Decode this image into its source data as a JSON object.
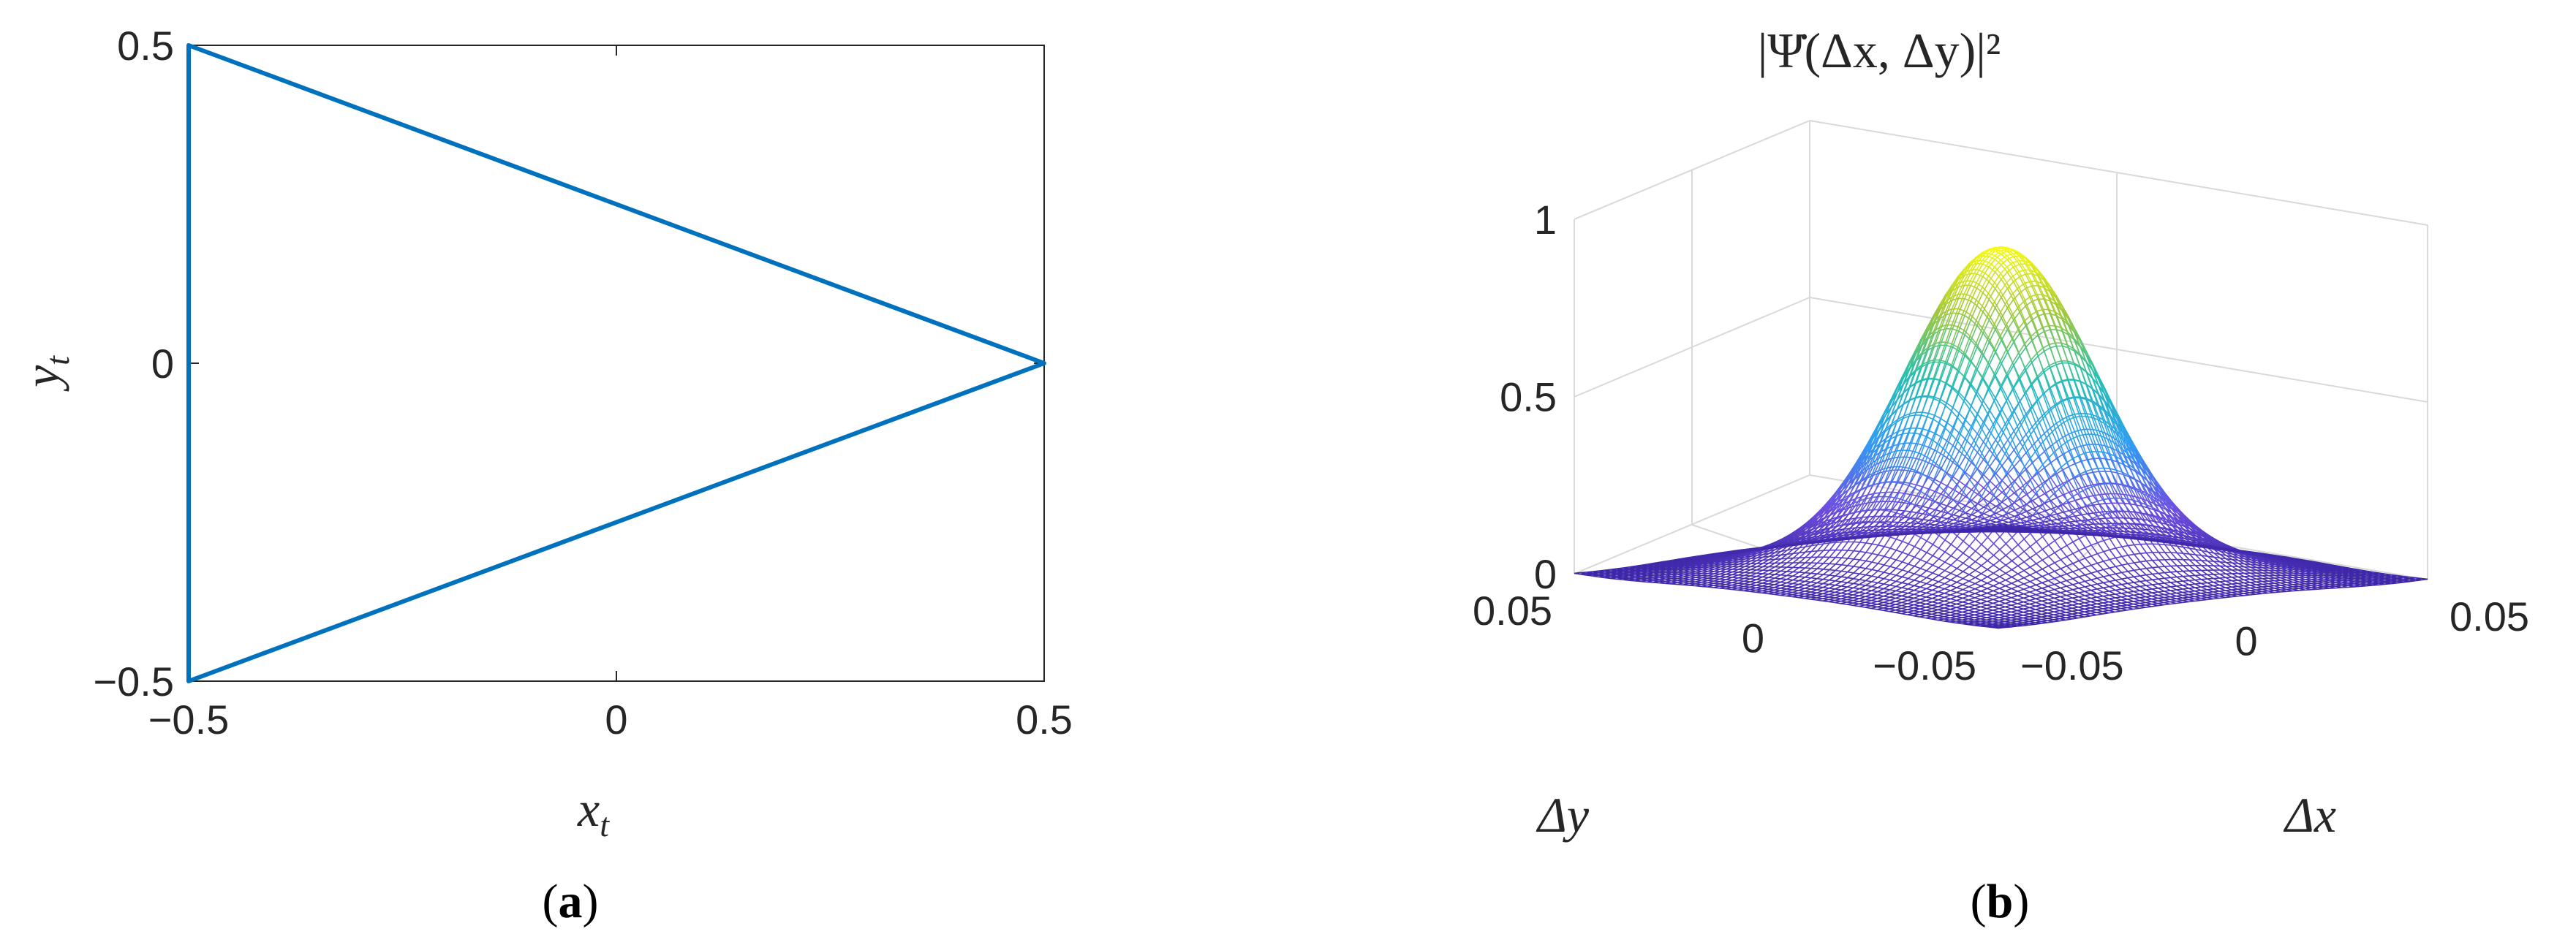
{
  "chart_data": [
    {
      "type": "line",
      "panel_label": "a",
      "xlabel": {
        "main": "x",
        "sub": "t"
      },
      "ylabel": {
        "main": "y",
        "sub": "t"
      },
      "xlim": [
        -0.5,
        0.5
      ],
      "ylim": [
        -0.5,
        0.5
      ],
      "xticks": [
        -0.5,
        0,
        0.5
      ],
      "xtick_labels": [
        "−0.5",
        "0",
        "0.5"
      ],
      "yticks": [
        -0.5,
        0,
        0.5
      ],
      "ytick_labels": [
        "−0.5",
        "0",
        "0.5"
      ],
      "grid": false,
      "series": [
        {
          "color": "#0072BD",
          "x": [
            -0.5,
            0.5,
            -0.5,
            -0.5
          ],
          "y": [
            0.5,
            0.0,
            -0.5,
            0.5
          ]
        }
      ]
    },
    {
      "type": "surface",
      "panel_label": "b",
      "title": "|Ψ̇(Δx, Δy)|²",
      "xlabel": "Δx",
      "ylabel": "Δy",
      "xlim": [
        -0.05,
        0.05
      ],
      "ylim": [
        -0.05,
        0.05
      ],
      "zlim": [
        0,
        1
      ],
      "xticks": [
        -0.05,
        0,
        0.05
      ],
      "xtick_labels": [
        "−0.05",
        "0",
        "0.05"
      ],
      "yticks": [
        -0.05,
        0,
        0.05
      ],
      "ytick_labels": [
        "−0.05",
        "0",
        "0.05"
      ],
      "zticks": [
        0,
        0.5,
        1
      ],
      "ztick_labels": [
        "0",
        "0.5",
        "1"
      ],
      "grid": true,
      "peak": {
        "x": 0,
        "y": 0,
        "z": 0.93
      },
      "colormap": [
        "#3E26A8",
        "#6F4FE0",
        "#2F9DF4",
        "#25C0B3",
        "#A2C83A",
        "#F9FB0E"
      ]
    }
  ]
}
